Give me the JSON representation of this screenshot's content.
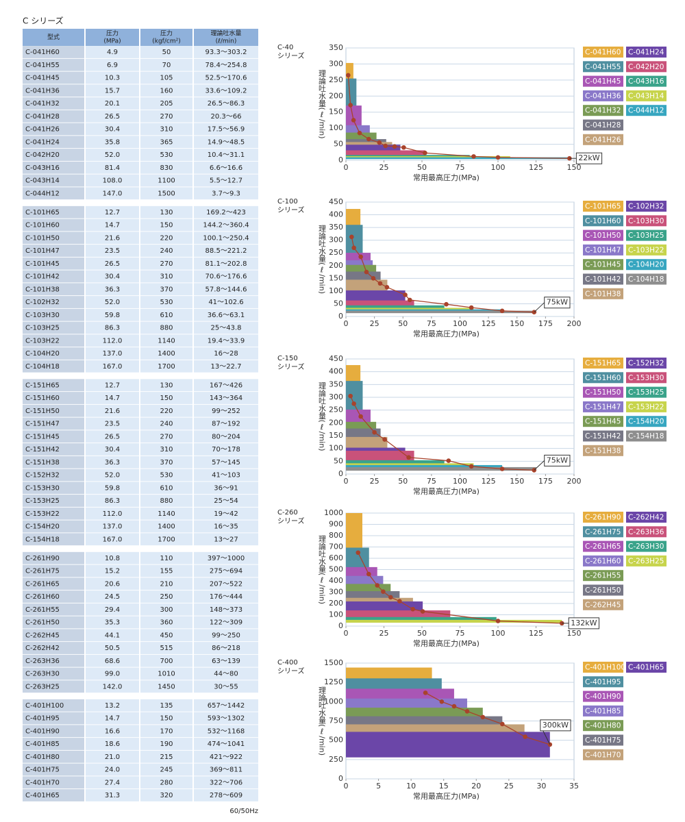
{
  "title": "C シリーズ",
  "table": {
    "header": [
      [
        "型式"
      ],
      [
        "圧力",
        "(MPa)"
      ],
      [
        "圧力",
        "(kgf/cm²)"
      ],
      [
        "理論吐水量",
        "(ℓ/min)"
      ]
    ],
    "groups": [
      [
        [
          "C-041H60",
          "4.9",
          "50",
          "93.3～303.2"
        ],
        [
          "C-041H55",
          "6.9",
          "70",
          "78.4～254.8"
        ],
        [
          "C-041H45",
          "10.3",
          "105",
          "52.5～170.6"
        ],
        [
          "C-041H36",
          "15.7",
          "160",
          "33.6～109.2"
        ],
        [
          "C-041H32",
          "20.1",
          "205",
          "26.5～86.3"
        ],
        [
          "C-041H28",
          "26.5",
          "270",
          "20.3～66"
        ],
        [
          "C-041H26",
          "30.4",
          "310",
          "17.5～56.9"
        ],
        [
          "C-041H24",
          "35.8",
          "365",
          "14.9～48.5"
        ],
        [
          "C-042H20",
          "52.0",
          "530",
          "10.4～31.1"
        ],
        [
          "C-043H16",
          "81.4",
          "830",
          "6.6～16.6"
        ],
        [
          "C-043H14",
          "108.0",
          "1100",
          "5.5～12.7"
        ],
        [
          "C-044H12",
          "147.0",
          "1500",
          "3.7～9.3"
        ]
      ],
      [
        [
          "C-101H65",
          "12.7",
          "130",
          "169.2～423"
        ],
        [
          "C-101H60",
          "14.7",
          "150",
          "144.2～360.4"
        ],
        [
          "C-101H50",
          "21.6",
          "220",
          "100.1～250.4"
        ],
        [
          "C-101H47",
          "23.5",
          "240",
          "88.5～221.2"
        ],
        [
          "C-101H45",
          "26.5",
          "270",
          "81.1～202.8"
        ],
        [
          "C-101H42",
          "30.4",
          "310",
          "70.6～176.6"
        ],
        [
          "C-101H38",
          "36.3",
          "370",
          "57.8～144.6"
        ],
        [
          "C-102H32",
          "52.0",
          "530",
          "41～102.6"
        ],
        [
          "C-103H30",
          "59.8",
          "610",
          "36.6～63.1"
        ],
        [
          "C-103H25",
          "86.3",
          "880",
          "25～43.8"
        ],
        [
          "C-103H22",
          "112.0",
          "1140",
          "19.4～33.9"
        ],
        [
          "C-104H20",
          "137.0",
          "1400",
          "16～28"
        ],
        [
          "C-104H18",
          "167.0",
          "1700",
          "13～22.7"
        ]
      ],
      [
        [
          "C-151H65",
          "12.7",
          "130",
          "167～426"
        ],
        [
          "C-151H60",
          "14.7",
          "150",
          "143～364"
        ],
        [
          "C-151H50",
          "21.6",
          "220",
          "99～252"
        ],
        [
          "C-151H47",
          "23.5",
          "240",
          "87～192"
        ],
        [
          "C-151H45",
          "26.5",
          "270",
          "80～204"
        ],
        [
          "C-151H42",
          "30.4",
          "310",
          "70～178"
        ],
        [
          "C-151H38",
          "36.3",
          "370",
          "57～145"
        ],
        [
          "C-152H32",
          "52.0",
          "530",
          "41～103"
        ],
        [
          "C-153H30",
          "59.8",
          "610",
          "36～91"
        ],
        [
          "C-153H25",
          "86.3",
          "880",
          "25～54"
        ],
        [
          "C-153H22",
          "112.0",
          "1140",
          "19～42"
        ],
        [
          "C-154H20",
          "137.0",
          "1400",
          "16～35"
        ],
        [
          "C-154H18",
          "167.0",
          "1700",
          "13～27"
        ]
      ],
      [
        [
          "C-261H90",
          "10.8",
          "110",
          "397～1000"
        ],
        [
          "C-261H75",
          "15.2",
          "155",
          "275～694"
        ],
        [
          "C-261H65",
          "20.6",
          "210",
          "207～522"
        ],
        [
          "C-261H60",
          "24.5",
          "250",
          "176～444"
        ],
        [
          "C-261H55",
          "29.4",
          "300",
          "148～373"
        ],
        [
          "C-261H50",
          "35.3",
          "360",
          "122～309"
        ],
        [
          "C-262H45",
          "44.1",
          "450",
          "99～250"
        ],
        [
          "C-262H42",
          "50.5",
          "515",
          "86～218"
        ],
        [
          "C-263H36",
          "68.6",
          "700",
          "63～139"
        ],
        [
          "C-263H30",
          "99.0",
          "1010",
          "44～80"
        ],
        [
          "C-263H25",
          "142.0",
          "1450",
          "30～55"
        ]
      ],
      [
        [
          "C-401H100",
          "13.2",
          "135",
          "657～1442"
        ],
        [
          "C-401H95",
          "14.7",
          "150",
          "593～1302"
        ],
        [
          "C-401H90",
          "16.6",
          "170",
          "532～1168"
        ],
        [
          "C-401H85",
          "18.6",
          "190",
          "474～1041"
        ],
        [
          "C-401H80",
          "21.0",
          "215",
          "421～922"
        ],
        [
          "C-401H75",
          "24.0",
          "245",
          "369～811"
        ],
        [
          "C-401H70",
          "27.4",
          "280",
          "322～706"
        ],
        [
          "C-401H65",
          "31.3",
          "320",
          "278～609"
        ]
      ]
    ]
  },
  "footnote": "60/50Hz",
  "chart_data": [
    {
      "type": "range-bar",
      "title": "C-40",
      "subtitle": "シリーズ",
      "x_label": "常用最高圧力(MPa)",
      "y_label": "理論吐水量(ℓ/min)",
      "xlim": [
        0,
        150
      ],
      "xticks": [
        0,
        25,
        50,
        75,
        100,
        125,
        150
      ],
      "ylim": [
        0,
        350
      ],
      "yticks": [
        0,
        50,
        100,
        150,
        200,
        250,
        300,
        350
      ],
      "grid": true,
      "series": [
        {
          "name": "C-041H60",
          "color": "#e6ad3e",
          "x": 4.9,
          "low": 93.3,
          "high": 303.2
        },
        {
          "name": "C-041H55",
          "color": "#4f8fa0",
          "x": 6.9,
          "low": 78.4,
          "high": 254.8
        },
        {
          "name": "C-041H45",
          "color": "#a956b5",
          "x": 10.3,
          "low": 52.5,
          "high": 170.6
        },
        {
          "name": "C-041H36",
          "color": "#8a78c9",
          "x": 15.7,
          "low": 33.6,
          "high": 109.2
        },
        {
          "name": "C-041H32",
          "color": "#7a9b55",
          "x": 20.1,
          "low": 26.5,
          "high": 86.3
        },
        {
          "name": "C-041H28",
          "color": "#777786",
          "x": 26.5,
          "low": 20.3,
          "high": 66
        },
        {
          "name": "C-041H26",
          "color": "#c3a27a",
          "x": 30.4,
          "low": 17.5,
          "high": 56.9
        },
        {
          "name": "C-041H24",
          "color": "#6b46a8",
          "x": 35.8,
          "low": 14.9,
          "high": 48.5
        },
        {
          "name": "C-042H20",
          "color": "#c9527a",
          "x": 52.0,
          "low": 10.4,
          "high": 31.1
        },
        {
          "name": "C-043H16",
          "color": "#3aa38a",
          "x": 81.4,
          "low": 6.6,
          "high": 16.6
        },
        {
          "name": "C-043H14",
          "color": "#c7d44c",
          "x": 108.0,
          "low": 5.5,
          "high": 12.7
        },
        {
          "name": "C-044H12",
          "color": "#37a6c0",
          "x": 147.0,
          "low": 3.7,
          "high": 9.3
        }
      ],
      "line": {
        "color": "#a8432c",
        "label": "22kW",
        "x": [
          1.5,
          3,
          5,
          9,
          15,
          22,
          26,
          32,
          38,
          52,
          84,
          100,
          147
        ],
        "values": [
          265,
          172,
          125,
          85,
          66,
          55,
          45,
          43,
          40,
          23,
          12,
          9,
          6
        ]
      }
    },
    {
      "type": "range-bar",
      "title": "C-100",
      "subtitle": "シリーズ",
      "x_label": "常用最高圧力(MPa)",
      "y_label": "理論吐水量(ℓ/min)",
      "xlim": [
        0,
        200
      ],
      "xticks": [
        0,
        25,
        50,
        75,
        100,
        125,
        150,
        175,
        200
      ],
      "ylim": [
        0,
        450
      ],
      "yticks": [
        0,
        50,
        100,
        150,
        200,
        250,
        300,
        350,
        400,
        450
      ],
      "grid": true,
      "series": [
        {
          "name": "C-101H65",
          "color": "#e6ad3e",
          "x": 12.7,
          "low": 169.2,
          "high": 423
        },
        {
          "name": "C-101H60",
          "color": "#4f8fa0",
          "x": 14.7,
          "low": 144.2,
          "high": 360.4
        },
        {
          "name": "C-101H50",
          "color": "#a956b5",
          "x": 21.6,
          "low": 100.1,
          "high": 250.4
        },
        {
          "name": "C-101H47",
          "color": "#8a78c9",
          "x": 23.5,
          "low": 88.5,
          "high": 221.2
        },
        {
          "name": "C-101H45",
          "color": "#7a9b55",
          "x": 26.5,
          "low": 81.1,
          "high": 202.8
        },
        {
          "name": "C-101H42",
          "color": "#777786",
          "x": 30.4,
          "low": 70.6,
          "high": 176.6
        },
        {
          "name": "C-101H38",
          "color": "#c3a27a",
          "x": 36.3,
          "low": 57.8,
          "high": 144.6
        },
        {
          "name": "C-102H32",
          "color": "#6b46a8",
          "x": 52.0,
          "low": 41,
          "high": 102.6
        },
        {
          "name": "C-103H30",
          "color": "#c9527a",
          "x": 59.8,
          "low": 36.6,
          "high": 63.1
        },
        {
          "name": "C-103H25",
          "color": "#3aa38a",
          "x": 86.3,
          "low": 25,
          "high": 43.8
        },
        {
          "name": "C-103H22",
          "color": "#c7d44c",
          "x": 112.0,
          "low": 19.4,
          "high": 33.9
        },
        {
          "name": "C-104H20",
          "color": "#37a6c0",
          "x": 137.0,
          "low": 16,
          "high": 28
        },
        {
          "name": "C-104H18",
          "color": "#8e8e8e",
          "x": 167.0,
          "low": 13,
          "high": 22.7
        }
      ],
      "line": {
        "color": "#a8432c",
        "label": "75kW",
        "x": [
          5,
          7,
          13,
          18,
          24,
          30,
          36,
          52,
          56,
          88,
          110,
          137,
          165
        ],
        "values": [
          313,
          270,
          235,
          175,
          150,
          130,
          115,
          85,
          65,
          48,
          35,
          22,
          17
        ]
      }
    },
    {
      "type": "range-bar",
      "title": "C-150",
      "subtitle": "シリーズ",
      "x_label": "常用最高圧力(MPa)",
      "y_label": "理論吐水量(ℓ/min)",
      "xlim": [
        0,
        200
      ],
      "xticks": [
        0,
        25,
        50,
        75,
        100,
        125,
        150,
        175,
        200
      ],
      "ylim": [
        0,
        450
      ],
      "yticks": [
        0,
        50,
        100,
        150,
        200,
        250,
        300,
        350,
        400,
        450
      ],
      "grid": true,
      "series": [
        {
          "name": "C-151H65",
          "color": "#e6ad3e",
          "x": 12.7,
          "low": 167,
          "high": 426
        },
        {
          "name": "C-151H60",
          "color": "#4f8fa0",
          "x": 14.7,
          "low": 143,
          "high": 364
        },
        {
          "name": "C-151H50",
          "color": "#a956b5",
          "x": 21.6,
          "low": 99,
          "high": 252
        },
        {
          "name": "C-151H47",
          "color": "#8a78c9",
          "x": 23.5,
          "low": 87,
          "high": 192
        },
        {
          "name": "C-151H45",
          "color": "#7a9b55",
          "x": 26.5,
          "low": 80,
          "high": 204
        },
        {
          "name": "C-151H42",
          "color": "#777786",
          "x": 30.4,
          "low": 70,
          "high": 178
        },
        {
          "name": "C-151H38",
          "color": "#c3a27a",
          "x": 36.3,
          "low": 57,
          "high": 145
        },
        {
          "name": "C-152H32",
          "color": "#6b46a8",
          "x": 52.0,
          "low": 41,
          "high": 103
        },
        {
          "name": "C-153H30",
          "color": "#c9527a",
          "x": 59.8,
          "low": 36,
          "high": 91
        },
        {
          "name": "C-153H25",
          "color": "#3aa38a",
          "x": 86.3,
          "low": 25,
          "high": 54
        },
        {
          "name": "C-153H22",
          "color": "#c7d44c",
          "x": 112.0,
          "low": 19,
          "high": 42
        },
        {
          "name": "C-154H20",
          "color": "#37a6c0",
          "x": 137.0,
          "low": 16,
          "high": 35
        },
        {
          "name": "C-154H18",
          "color": "#8e8e8e",
          "x": 167.0,
          "low": 13,
          "high": 27
        }
      ],
      "line": {
        "color": "#a8432c",
        "label": "75kW",
        "x": [
          4,
          7,
          13,
          25,
          34,
          55,
          90,
          110,
          137,
          165
        ],
        "values": [
          305,
          275,
          225,
          163,
          135,
          65,
          52,
          30,
          20,
          15
        ]
      }
    },
    {
      "type": "range-bar",
      "title": "C-260",
      "subtitle": "シリーズ",
      "x_label": "常用最高圧力(MPa)",
      "y_label": "理論吐水量(ℓ/min)",
      "xlim": [
        0,
        150
      ],
      "xticks": [
        0,
        25,
        50,
        75,
        100,
        125,
        150
      ],
      "ylim": [
        0,
        1000
      ],
      "yticks": [
        0,
        100,
        200,
        300,
        400,
        500,
        600,
        700,
        800,
        900,
        1000
      ],
      "grid": true,
      "series": [
        {
          "name": "C-261H90",
          "color": "#e6ad3e",
          "x": 10.8,
          "low": 397,
          "high": 1000
        },
        {
          "name": "C-261H75",
          "color": "#4f8fa0",
          "x": 15.2,
          "low": 275,
          "high": 694
        },
        {
          "name": "C-261H65",
          "color": "#a956b5",
          "x": 20.6,
          "low": 207,
          "high": 522
        },
        {
          "name": "C-261H60",
          "color": "#8a78c9",
          "x": 24.5,
          "low": 176,
          "high": 444
        },
        {
          "name": "C-261H55",
          "color": "#7a9b55",
          "x": 29.4,
          "low": 148,
          "high": 373
        },
        {
          "name": "C-261H50",
          "color": "#777786",
          "x": 35.3,
          "low": 122,
          "high": 309
        },
        {
          "name": "C-262H45",
          "color": "#c3a27a",
          "x": 44.1,
          "low": 99,
          "high": 250
        },
        {
          "name": "C-262H42",
          "color": "#6b46a8",
          "x": 50.5,
          "low": 86,
          "high": 218
        },
        {
          "name": "C-263H36",
          "color": "#c9527a",
          "x": 68.6,
          "low": 63,
          "high": 139
        },
        {
          "name": "C-263H30",
          "color": "#3aa38a",
          "x": 99.0,
          "low": 44,
          "high": 80
        },
        {
          "name": "C-263H25",
          "color": "#c7d44c",
          "x": 142.0,
          "low": 30,
          "high": 55
        }
      ],
      "line": {
        "color": "#a8432c",
        "label": "132kW",
        "x": [
          8,
          15,
          20.6,
          24.5,
          29.4,
          35.3,
          44,
          50.5,
          100,
          142
        ],
        "values": [
          650,
          460,
          360,
          305,
          255,
          220,
          150,
          130,
          45,
          25
        ]
      }
    },
    {
      "type": "range-bar",
      "title": "C-400",
      "subtitle": "シリーズ",
      "x_label": "常用最高圧力(MPa)",
      "y_label": "理論吐水量(ℓ/min)",
      "xlim": [
        0,
        35
      ],
      "xticks": [
        0,
        5,
        10,
        15,
        20,
        25,
        30,
        35
      ],
      "ylim": [
        0,
        1500
      ],
      "yticks": [
        0,
        250,
        500,
        750,
        1000,
        1250,
        1500
      ],
      "grid": true,
      "series": [
        {
          "name": "C-401H100",
          "color": "#e6ad3e",
          "x": 13.2,
          "low": 657,
          "high": 1442
        },
        {
          "name": "C-401H95",
          "color": "#4f8fa0",
          "x": 14.7,
          "low": 593,
          "high": 1302
        },
        {
          "name": "C-401H90",
          "color": "#a956b5",
          "x": 16.6,
          "low": 532,
          "high": 1168
        },
        {
          "name": "C-401H85",
          "color": "#8a78c9",
          "x": 18.6,
          "low": 474,
          "high": 1041
        },
        {
          "name": "C-401H80",
          "color": "#7a9b55",
          "x": 21.0,
          "low": 421,
          "high": 922
        },
        {
          "name": "C-401H75",
          "color": "#777786",
          "x": 24.0,
          "low": 369,
          "high": 811
        },
        {
          "name": "C-401H70",
          "color": "#c3a27a",
          "x": 27.4,
          "low": 322,
          "high": 706
        },
        {
          "name": "C-401H65",
          "color": "#6b46a8",
          "x": 31.3,
          "low": 278,
          "high": 609
        }
      ],
      "line": {
        "color": "#a8432c",
        "label": "300kW",
        "x": [
          12.2,
          14.7,
          16.6,
          18.6,
          21,
          24,
          27.5,
          31.3
        ],
        "values": [
          1115,
          1000,
          940,
          875,
          800,
          710,
          545,
          445
        ]
      }
    }
  ]
}
